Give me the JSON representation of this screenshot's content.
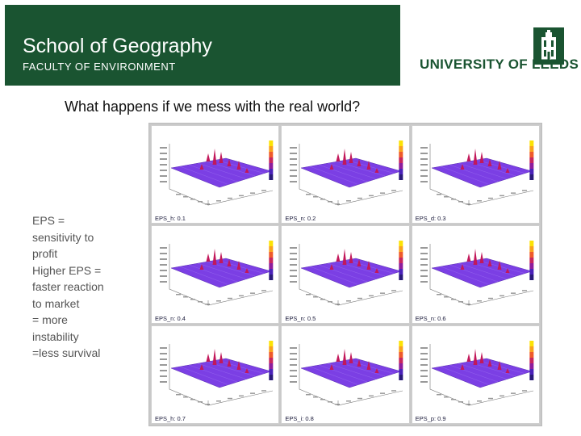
{
  "header": {
    "school_title": "School of Geography",
    "faculty": "FACULTY OF ENVIRONMENT",
    "university": "UNIVERSITY OF LEEDS",
    "brand_green": "#1a5431"
  },
  "slide": {
    "title": "What happens if we mess with the real world?",
    "bullet_lines": [
      "EPS =",
      "sensitivity to",
      "profit",
      "Higher EPS =",
      "faster reaction",
      "to market",
      "= more",
      "instability",
      "=less survival"
    ]
  },
  "panels": {
    "items": [
      {
        "caption": "EPS_h: 0.1"
      },
      {
        "caption": "EPS_n: 0.2"
      },
      {
        "caption": "EPS_d: 0.3"
      },
      {
        "caption": "EPS_n: 0.4"
      },
      {
        "caption": "EPS_n: 0.5"
      },
      {
        "caption": "EPS_n: 0.6"
      },
      {
        "caption": "EPS_h: 0.7"
      },
      {
        "caption": "EPS_i: 0.8"
      },
      {
        "caption": "EPS_p: 0.9"
      }
    ],
    "surface_color": "#7b3fe4",
    "peak_color": "#c2185b"
  },
  "icons": {
    "crest": "university-crest-icon"
  }
}
